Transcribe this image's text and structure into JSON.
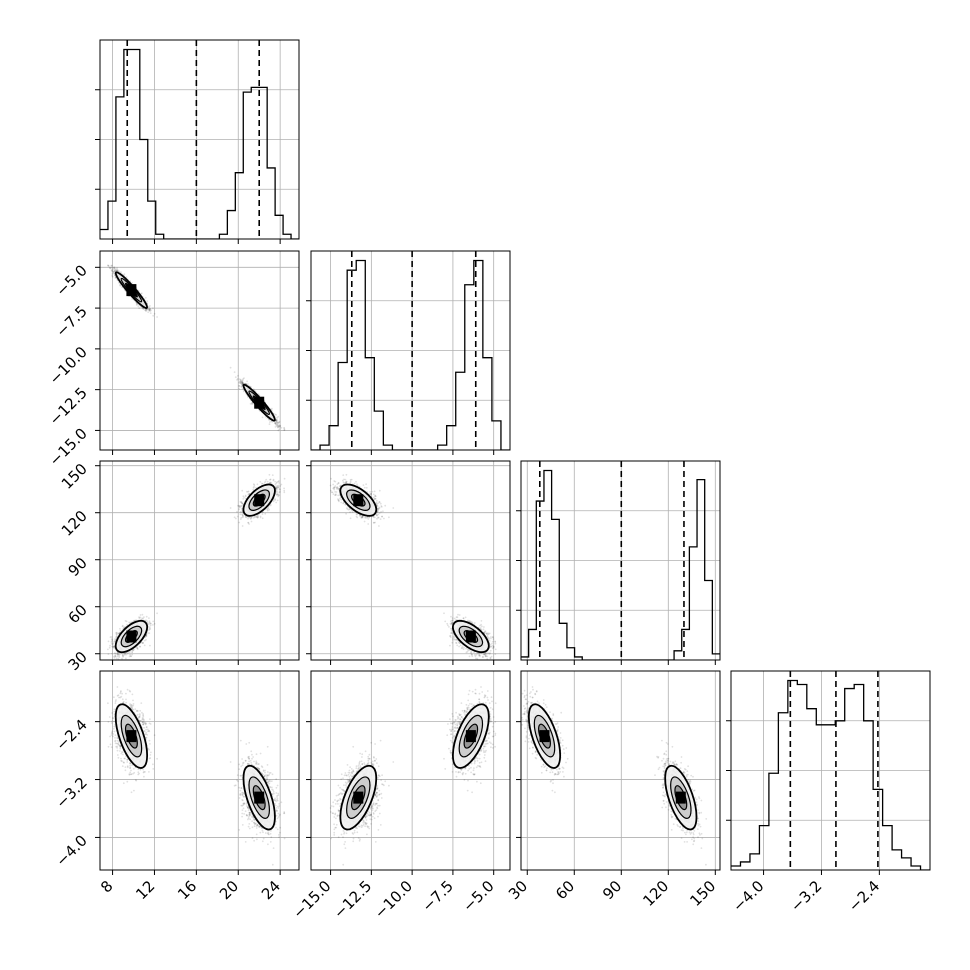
{
  "chart_data": {
    "type": "corner",
    "grid": true,
    "parameters": [
      {
        "ticks": [
          "8",
          "12",
          "16",
          "20",
          "24"
        ],
        "range": [
          6.8,
          25.8
        ],
        "quantiles": [
          9.4,
          16.0,
          22.0
        ]
      },
      {
        "ticks": [
          "−15.0",
          "−12.5",
          "−10.0",
          "−7.5",
          "−5.0"
        ],
        "range": [
          -16.2,
          -4.0
        ],
        "quantiles": [
          -13.7,
          -10.0,
          -6.1
        ]
      },
      {
        "ticks": [
          "30",
          "60",
          "90",
          "120",
          "150"
        ],
        "range": [
          26,
          153
        ],
        "quantiles": [
          38,
          90,
          130
        ]
      },
      {
        "ticks": [
          "−4.0",
          "−3.2",
          "−2.4"
        ],
        "range": [
          -4.45,
          -1.7
        ],
        "quantiles": [
          -3.63,
          -3.0,
          -2.42
        ]
      }
    ],
    "histograms": [
      [
        2,
        8,
        30,
        40,
        40,
        21,
        8,
        1,
        0,
        0,
        0,
        0,
        0,
        0,
        0,
        1,
        6,
        14,
        31,
        32,
        32,
        15,
        5,
        1,
        0
      ],
      [
        0,
        1,
        5,
        18,
        37,
        39,
        19,
        8,
        1,
        0,
        0,
        0,
        0,
        0,
        1,
        5,
        16,
        34,
        39,
        19,
        6,
        0
      ],
      [
        1,
        10,
        52,
        62,
        46,
        12,
        4,
        1,
        0,
        0,
        0,
        0,
        0,
        0,
        0,
        0,
        0,
        0,
        0,
        0,
        3,
        10,
        37,
        59,
        26,
        2
      ],
      [
        1,
        2,
        4,
        11,
        24,
        39,
        47,
        46,
        40,
        36,
        36,
        37,
        45,
        46,
        37,
        20,
        11,
        5,
        3,
        1,
        0
      ]
    ],
    "modes": [
      [
        9.8,
        -6.4,
        41,
        -2.6
      ],
      [
        22.0,
        -13.3,
        128,
        -3.45
      ]
    ],
    "sigma": [
      0.75,
      0.55,
      5.0,
      0.22
    ],
    "correlation": [
      [
        1.0,
        -0.95,
        0.6,
        -0.6
      ],
      [
        -0.95,
        1.0,
        -0.6,
        0.6
      ],
      [
        0.6,
        -0.6,
        1.0,
        -0.6
      ],
      [
        -0.6,
        0.6,
        -0.6,
        1.0
      ]
    ]
  }
}
